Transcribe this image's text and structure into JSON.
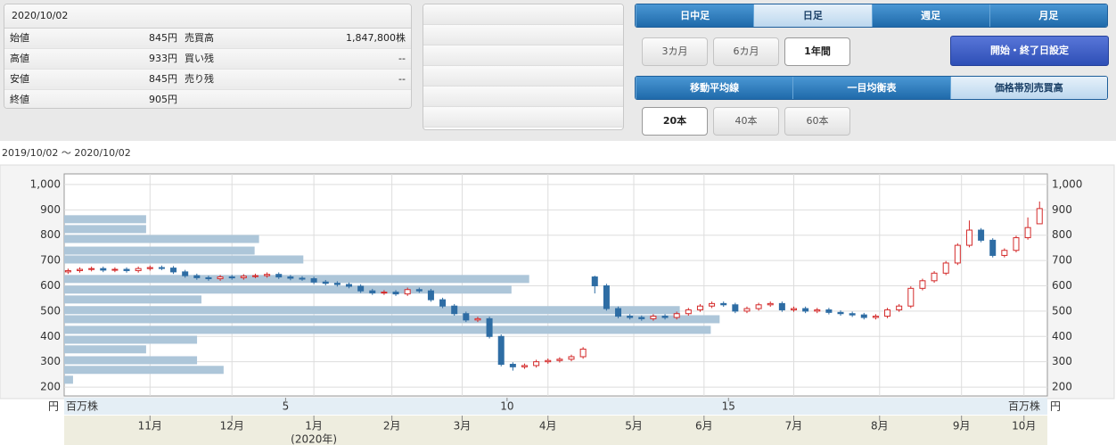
{
  "info": {
    "date": "2020/10/02",
    "rows": [
      [
        "始値",
        "845円",
        "売買高",
        "1,847,800株"
      ],
      [
        "高値",
        "933円",
        "買い残",
        "--"
      ],
      [
        "安値",
        "845円",
        "売り残",
        "--"
      ],
      [
        "終値",
        "905円"
      ]
    ]
  },
  "controls": {
    "period_tabs": [
      "日中足",
      "日足",
      "週足",
      "月足"
    ],
    "range_buttons": [
      "3カ月",
      "6カ月",
      "1年間"
    ],
    "date_setting": "開始・終了日設定",
    "indicator_tabs": [
      "移動平均線",
      "一目均衡表",
      "価格帯別売買高"
    ],
    "count_buttons": [
      "20本",
      "40本",
      "60本"
    ]
  },
  "chart_data": {
    "type": "candlestick",
    "date_range": "2019/10/02 〜 2020/10/02",
    "y_unit": "円",
    "volume_unit": "百万株",
    "year_label": "(2020年)",
    "x": [
      0,
      3,
      6,
      9,
      12,
      15,
      18,
      21,
      24,
      27,
      30,
      33,
      36,
      39,
      42,
      45,
      48,
      51,
      54,
      57,
      60,
      63,
      66,
      69,
      72,
      75,
      78,
      81,
      84,
      87,
      90,
      93,
      96,
      99,
      102,
      105,
      108,
      111,
      114,
      117,
      120,
      123,
      126,
      129,
      132,
      135,
      138,
      141,
      144,
      147,
      150,
      153,
      156,
      159,
      162,
      165,
      168,
      171,
      174,
      177,
      180,
      183,
      186,
      189,
      192,
      195,
      198,
      201,
      204,
      207,
      210,
      213,
      216,
      219,
      222,
      225,
      228,
      231,
      234,
      237,
      240,
      243,
      246,
      249
    ],
    "open": [
      655,
      660,
      665,
      668,
      662,
      665,
      660,
      668,
      672,
      670,
      655,
      640,
      632,
      628,
      635,
      632,
      638,
      640,
      645,
      635,
      630,
      628,
      615,
      610,
      605,
      598,
      580,
      572,
      575,
      568,
      585,
      580,
      545,
      520,
      490,
      465,
      470,
      400,
      290,
      280,
      285,
      300,
      305,
      310,
      320,
      635,
      600,
      510,
      480,
      475,
      470,
      480,
      475,
      490,
      505,
      520,
      530,
      525,
      500,
      510,
      525,
      530,
      505,
      510,
      500,
      505,
      495,
      490,
      485,
      475,
      480,
      505,
      520,
      590,
      620,
      650,
      690,
      760,
      820,
      780,
      720,
      740,
      790,
      845
    ],
    "high": [
      668,
      673,
      676,
      676,
      673,
      673,
      676,
      680,
      680,
      678,
      663,
      648,
      640,
      643,
      643,
      646,
      648,
      653,
      653,
      643,
      638,
      636,
      623,
      618,
      613,
      606,
      588,
      583,
      583,
      593,
      593,
      588,
      553,
      528,
      498,
      478,
      478,
      408,
      298,
      293,
      308,
      313,
      318,
      328,
      358,
      640,
      608,
      518,
      488,
      483,
      488,
      488,
      498,
      513,
      528,
      538,
      538,
      533,
      518,
      533,
      538,
      538,
      518,
      518,
      513,
      513,
      503,
      498,
      493,
      488,
      513,
      528,
      598,
      628,
      658,
      698,
      768,
      858,
      828,
      788,
      748,
      798,
      870,
      933
    ],
    "low": [
      647,
      652,
      657,
      654,
      654,
      652,
      652,
      660,
      662,
      647,
      632,
      624,
      620,
      620,
      624,
      624,
      630,
      632,
      627,
      622,
      620,
      607,
      602,
      597,
      590,
      572,
      564,
      564,
      560,
      560,
      572,
      537,
      512,
      482,
      457,
      457,
      392,
      282,
      265,
      272,
      277,
      292,
      297,
      302,
      312,
      570,
      502,
      472,
      467,
      462,
      462,
      467,
      467,
      482,
      497,
      512,
      517,
      492,
      492,
      502,
      517,
      497,
      497,
      492,
      492,
      487,
      482,
      477,
      467,
      467,
      472,
      497,
      512,
      582,
      612,
      642,
      682,
      752,
      772,
      712,
      712,
      732,
      782,
      845
    ],
    "close": [
      660,
      665,
      668,
      662,
      665,
      660,
      668,
      672,
      670,
      655,
      640,
      632,
      628,
      635,
      632,
      638,
      640,
      645,
      635,
      630,
      628,
      615,
      610,
      605,
      598,
      580,
      572,
      575,
      568,
      585,
      580,
      545,
      520,
      490,
      465,
      470,
      400,
      290,
      280,
      285,
      300,
      305,
      310,
      320,
      350,
      600,
      510,
      480,
      475,
      470,
      480,
      475,
      490,
      505,
      520,
      530,
      525,
      500,
      510,
      525,
      530,
      505,
      510,
      500,
      505,
      495,
      490,
      485,
      475,
      480,
      505,
      520,
      590,
      620,
      650,
      690,
      760,
      820,
      780,
      720,
      740,
      790,
      830,
      905
    ],
    "up_color": "#d42a2a",
    "down_color": "#2e6da4",
    "xlim": [
      -1,
      251
    ],
    "xticks": [
      {
        "value": 21,
        "label": "11月"
      },
      {
        "value": 42,
        "label": "12月"
      },
      {
        "value": 63,
        "label": "1月"
      },
      {
        "value": 83,
        "label": "2月"
      },
      {
        "value": 101,
        "label": "3月"
      },
      {
        "value": 123,
        "label": "4月"
      },
      {
        "value": 145,
        "label": "5月"
      },
      {
        "value": 163,
        "label": "6月"
      },
      {
        "value": 186,
        "label": "7月"
      },
      {
        "value": 208,
        "label": "8月"
      },
      {
        "value": 229,
        "label": "9月"
      },
      {
        "value": 245,
        "label": "10月"
      }
    ],
    "ylim": [
      165,
      1042
    ],
    "yticks": [
      {
        "value": 1000,
        "label": "1,000"
      },
      900,
      800,
      700,
      600,
      500,
      400,
      300,
      200
    ],
    "grid": true,
    "volume_profile": {
      "prices": [
        863,
        824,
        785,
        739,
        704,
        627,
        585,
        546,
        504,
        468,
        426,
        387,
        349,
        306,
        268,
        229
      ],
      "values": [
        1.85,
        1.85,
        4.4,
        4.3,
        5.4,
        10.5,
        10.1,
        3.1,
        13.9,
        14.8,
        14.6,
        3.0,
        1.85,
        3.0,
        3.6,
        0.2
      ],
      "xlim": [
        0,
        22.2
      ],
      "xticks": [
        5,
        10,
        15
      ],
      "color": "#adc6d9"
    }
  }
}
